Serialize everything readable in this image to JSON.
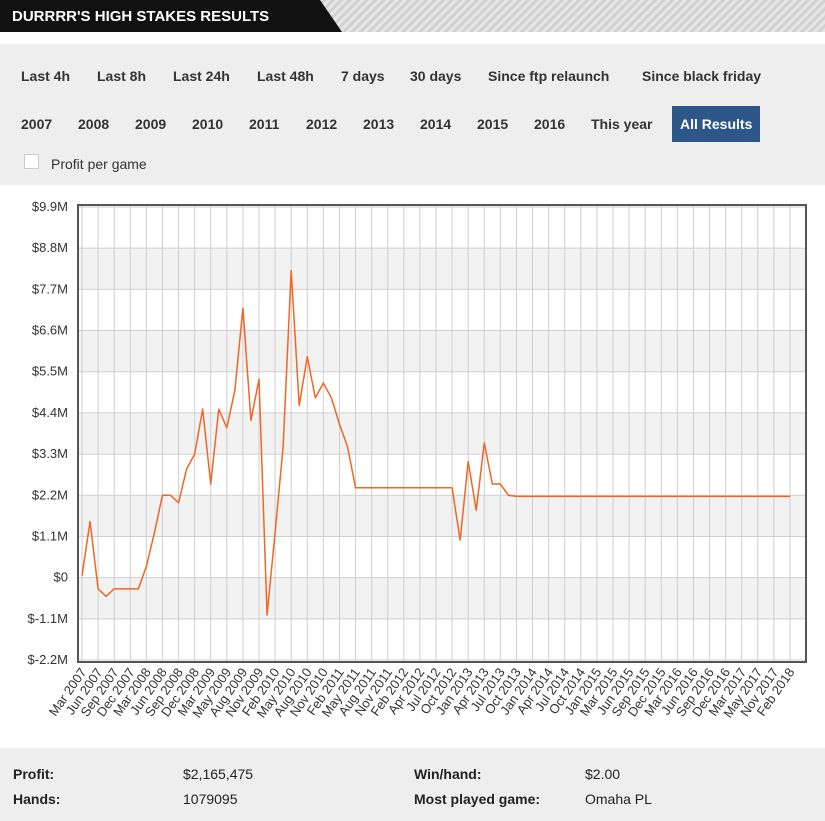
{
  "header": {
    "title": "DURRRR'S HIGH STAKES RESULTS"
  },
  "filters": {
    "row1": [
      "Last 4h",
      "Last 8h",
      "Last 24h",
      "Last 48h",
      "7 days",
      "30 days",
      "Since ftp relaunch",
      "Since black friday"
    ],
    "row2": [
      "2007",
      "2008",
      "2009",
      "2010",
      "2011",
      "2012",
      "2013",
      "2014",
      "2015",
      "2016",
      "This year",
      "All Results"
    ]
  },
  "checkbox": {
    "label": "Profit per game",
    "checked": false
  },
  "chart_data": {
    "type": "line",
    "categories": [
      "Mar 2007",
      null,
      "Jun 2007",
      null,
      "Sep 2007",
      null,
      "Dec 2007",
      null,
      "Mar 2008",
      null,
      "Jun 2008",
      null,
      "Sep 2008",
      null,
      "Dec 2008",
      null,
      "Mar 2009",
      null,
      "May 2009",
      null,
      "Aug 2009",
      null,
      "Nov 2009",
      null,
      "Feb 2010",
      null,
      "May 2010",
      null,
      "Aug 2010",
      null,
      "Nov 2010",
      null,
      "Feb 2011",
      null,
      "May 2011",
      null,
      "Aug 2011",
      null,
      "Nov 2011",
      null,
      "Feb 2012",
      null,
      "Apr 2012",
      null,
      "Jul 2012",
      null,
      "Oct 2012",
      null,
      "Jan 2013",
      null,
      "Apr 2013",
      null,
      "Jul 2013",
      null,
      "Oct 2013",
      null,
      "Jan 2014",
      null,
      "Apr 2014",
      null,
      "Jul 2014",
      null,
      "Oct 2014",
      null,
      "Jan 2015",
      null,
      "Mar 2015",
      null,
      "Jun 2015",
      null,
      "Sep 2015",
      null,
      "Dec 2015",
      null,
      "Mar 2016",
      null,
      "Jun 2016",
      null,
      "Sep 2016",
      null,
      "Dec 2016",
      null,
      "Mar 2017",
      null,
      "May 2017",
      null,
      "Nov 2017",
      null,
      "Feb 2018"
    ],
    "series": [
      {
        "name": "Profit",
        "color": "#f26522",
        "values": [
          0.05,
          1.5,
          -0.3,
          -0.5,
          -0.3,
          -0.3,
          -0.3,
          -0.3,
          0.3,
          1.2,
          2.2,
          2.2,
          2.0,
          2.9,
          3.3,
          4.5,
          2.5,
          4.5,
          4.0,
          5.0,
          7.2,
          4.2,
          5.3,
          -1.0,
          1.2,
          3.5,
          8.2,
          4.6,
          5.9,
          4.8,
          5.2,
          4.8,
          4.1,
          3.5,
          2.4,
          2.4,
          2.4,
          2.4,
          2.4,
          2.4,
          2.4,
          2.4,
          2.4,
          2.4,
          2.4,
          2.4,
          2.4,
          1.0,
          3.1,
          1.8,
          3.6,
          2.5,
          2.5,
          2.2,
          2.17,
          2.17,
          2.17,
          2.17,
          2.17,
          2.17,
          2.17,
          2.17,
          2.17,
          2.17,
          2.17,
          2.17,
          2.17,
          2.17,
          2.17,
          2.17,
          2.17,
          2.17,
          2.17,
          2.17,
          2.17,
          2.17,
          2.17,
          2.17,
          2.17,
          2.17,
          2.17,
          2.17,
          2.17,
          2.17,
          2.17,
          2.17,
          2.17,
          2.17,
          2.17
        ]
      }
    ],
    "ylim": [
      -2.2,
      9.9
    ],
    "yticks": [
      {
        "value": -2.2,
        "label": "$-2.2M"
      },
      {
        "value": -1.1,
        "label": "$-1.1M"
      },
      {
        "value": 0,
        "label": "$0"
      },
      {
        "value": 1.1,
        "label": "$1.1M"
      },
      {
        "value": 2.2,
        "label": "$2.2M"
      },
      {
        "value": 3.3,
        "label": "$3.3M"
      },
      {
        "value": 4.4,
        "label": "$4.4M"
      },
      {
        "value": 5.5,
        "label": "$5.5M"
      },
      {
        "value": 6.6,
        "label": "$6.6M"
      },
      {
        "value": 7.7,
        "label": "$7.7M"
      },
      {
        "value": 8.8,
        "label": "$8.8M"
      },
      {
        "value": 9.9,
        "label": "$9.9M"
      }
    ],
    "grid": true
  },
  "stats": {
    "rows": [
      [
        "Profit:",
        "$2,165,475",
        "Win/hand:",
        "$2.00"
      ],
      [
        "Hands:",
        "1079095",
        "Most played game:",
        "Omaha PL"
      ]
    ]
  }
}
